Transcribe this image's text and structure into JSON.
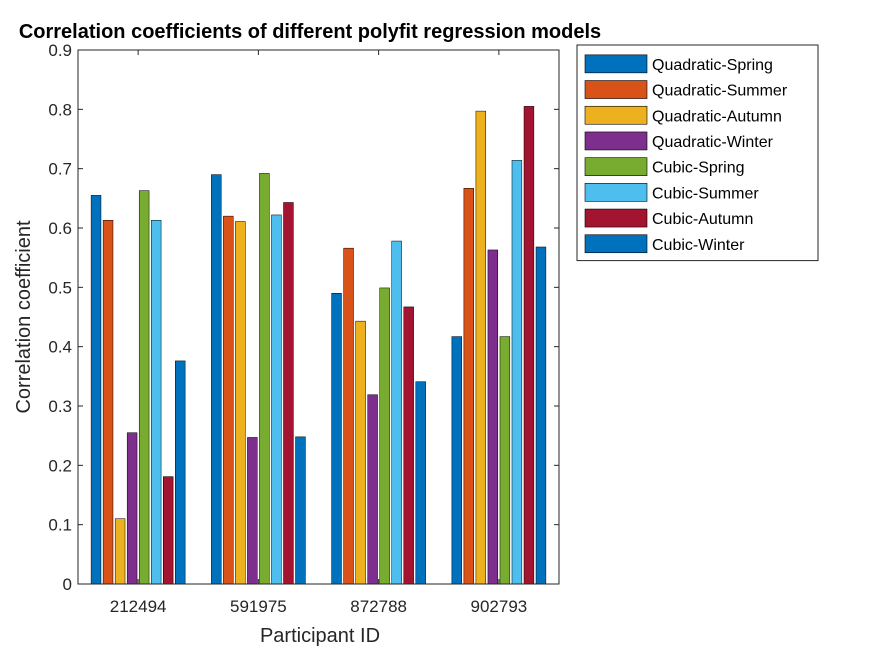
{
  "chart_data": {
    "type": "bar",
    "title": "Correlation coefficients of different polyfit regression models",
    "xlabel": "Participant ID",
    "ylabel": "Correlation coefficient",
    "ylim": [
      0,
      0.9
    ],
    "yticks": [
      "0",
      "0.1",
      "0.2",
      "0.3",
      "0.4",
      "0.5",
      "0.6",
      "0.7",
      "0.8",
      "0.9"
    ],
    "categories": [
      "212494",
      "591975",
      "872788",
      "902793"
    ],
    "legend_position": "outside-top-right",
    "grid": false,
    "series": [
      {
        "name": "Quadratic-Spring",
        "color": "#0072BD",
        "values": [
          0.655,
          0.69,
          0.49,
          0.417
        ]
      },
      {
        "name": "Quadratic-Summer",
        "color": "#D95319",
        "values": [
          0.613,
          0.62,
          0.566,
          0.667
        ]
      },
      {
        "name": "Quadratic-Autumn",
        "color": "#EDB120",
        "values": [
          0.11,
          0.611,
          0.443,
          0.797
        ]
      },
      {
        "name": "Quadratic-Winter",
        "color": "#7E2F8E",
        "values": [
          0.255,
          0.247,
          0.319,
          0.563
        ]
      },
      {
        "name": "Cubic-Spring",
        "color": "#77AC30",
        "values": [
          0.663,
          0.692,
          0.499,
          0.417
        ]
      },
      {
        "name": "Cubic-Summer",
        "color": "#4DBEEE",
        "values": [
          0.613,
          0.622,
          0.578,
          0.714
        ]
      },
      {
        "name": "Cubic-Autumn",
        "color": "#A2142F",
        "values": [
          0.181,
          0.643,
          0.467,
          0.805
        ]
      },
      {
        "name": "Cubic-Winter",
        "color": "#0072BD",
        "values": [
          0.376,
          0.248,
          0.341,
          0.568
        ]
      }
    ]
  }
}
